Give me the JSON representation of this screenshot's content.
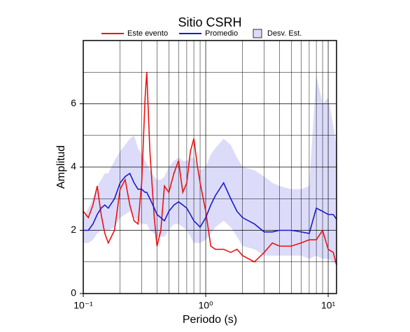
{
  "chart_data": {
    "type": "line",
    "title": "Sitio CSRH",
    "x_label": "Periodo (s)",
    "y_label": "Amplitud",
    "log_x": true,
    "grid": true,
    "xlim": [
      0.1,
      11.7
    ],
    "ylim": [
      0,
      8
    ],
    "xticks": [
      {
        "value": 0.1,
        "label": "10⁻¹"
      },
      {
        "value": 1,
        "label": "10⁰"
      },
      {
        "value": 10,
        "label": "10¹"
      }
    ],
    "x_minor_ticks": [
      0.2,
      0.3,
      0.4,
      0.5,
      0.6,
      0.7,
      0.8,
      0.9,
      2,
      3,
      4,
      5,
      6,
      7,
      8,
      9
    ],
    "yticks": [
      0,
      2,
      4,
      6
    ],
    "y_minor_ticks": [
      1,
      3,
      5,
      7
    ],
    "x": [
      0.1,
      0.11,
      0.12,
      0.13,
      0.14,
      0.15,
      0.16,
      0.18,
      0.2,
      0.22,
      0.24,
      0.26,
      0.28,
      0.3,
      0.32,
      0.33,
      0.35,
      0.38,
      0.4,
      0.43,
      0.46,
      0.5,
      0.55,
      0.6,
      0.65,
      0.7,
      0.75,
      0.8,
      0.85,
      0.9,
      1,
      1.1,
      1.2,
      1.4,
      1.6,
      1.8,
      2,
      2.5,
      3,
      3.5,
      4,
      5,
      6,
      7,
      8,
      9,
      10,
      11,
      11.7
    ],
    "series": [
      {
        "name": "Este evento",
        "color": "#ee1111",
        "values": [
          2.6,
          2.4,
          2.8,
          3.4,
          2.5,
          1.9,
          1.6,
          2.0,
          3.3,
          3.6,
          2.8,
          2.3,
          2.2,
          3.5,
          6.2,
          7.0,
          4.5,
          2.4,
          1.5,
          2.0,
          3.4,
          3.2,
          3.8,
          4.2,
          3.2,
          3.5,
          4.5,
          4.9,
          4.1,
          3.5,
          2.6,
          1.5,
          1.4,
          1.4,
          1.3,
          1.4,
          1.2,
          1.0,
          1.3,
          1.6,
          1.5,
          1.5,
          1.6,
          1.7,
          1.7,
          2.0,
          1.4,
          1.3,
          0.9
        ]
      },
      {
        "name": "Promedio",
        "color": "#1a1acc",
        "values": [
          2.0,
          2.0,
          2.2,
          2.5,
          2.7,
          2.8,
          2.7,
          3.0,
          3.5,
          3.7,
          3.8,
          3.5,
          3.3,
          3.3,
          3.2,
          3.2,
          3.0,
          2.7,
          2.5,
          2.4,
          2.3,
          2.6,
          2.8,
          2.9,
          2.8,
          2.7,
          2.5,
          2.3,
          2.2,
          2.1,
          2.4,
          2.8,
          3.1,
          3.5,
          3.0,
          2.6,
          2.4,
          2.2,
          1.95,
          1.95,
          2.0,
          2.0,
          1.95,
          1.9,
          2.7,
          2.6,
          2.5,
          2.5,
          2.35
        ]
      },
      {
        "name": "Desv. Est.",
        "color": "#dcdcfa",
        "upper": [
          2.4,
          2.7,
          3.0,
          3.4,
          3.6,
          3.8,
          3.8,
          4.2,
          4.5,
          4.7,
          4.9,
          5.0,
          4.6,
          4.4,
          4.2,
          4.1,
          3.9,
          3.7,
          3.6,
          3.6,
          3.7,
          4.0,
          4.2,
          4.3,
          4.2,
          4.2,
          4.3,
          4.3,
          4.1,
          3.9,
          4.0,
          4.4,
          4.6,
          4.9,
          4.7,
          4.3,
          4.0,
          3.9,
          3.7,
          3.5,
          3.4,
          3.3,
          3.3,
          3.4,
          6.9,
          6.0,
          6.2,
          5.3,
          4.7
        ],
        "lower": [
          1.6,
          1.6,
          1.7,
          1.9,
          2.0,
          2.0,
          2.0,
          2.1,
          2.4,
          2.5,
          2.6,
          2.4,
          2.3,
          2.2,
          2.2,
          2.2,
          2.0,
          1.9,
          1.8,
          1.8,
          1.8,
          2.0,
          2.2,
          2.2,
          2.1,
          2.0,
          1.8,
          1.6,
          1.6,
          1.6,
          1.7,
          1.9,
          2.1,
          2.3,
          2.1,
          1.8,
          1.5,
          1.4,
          1.2,
          1.2,
          1.2,
          1.2,
          1.2,
          1.1,
          1.2,
          1.1,
          1.1,
          1.0,
          0.9
        ]
      }
    ]
  }
}
